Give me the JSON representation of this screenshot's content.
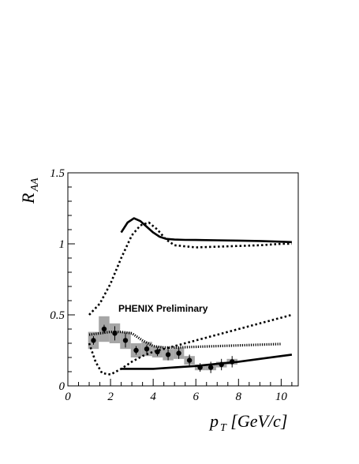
{
  "chart_data": {
    "type": "scatter",
    "title": "",
    "xlabel": "p_T [GeV/c]",
    "xlabel_main": "p",
    "xlabel_sub": "T",
    "xlabel_unit": " [GeV/c]",
    "ylabel": "R_AA",
    "ylabel_main": "R",
    "ylabel_sub": "AA",
    "xlim": [
      0,
      10.8
    ],
    "ylim": [
      0,
      1.5
    ],
    "x_ticks": [
      0,
      2,
      4,
      6,
      8,
      10
    ],
    "y_ticks": [
      0,
      0.5,
      1,
      1.5
    ],
    "x_tick_labels": [
      "0",
      "2",
      "4",
      "6",
      "8",
      "10"
    ],
    "y_tick_labels": [
      "0",
      "0.5",
      "1",
      "1.5"
    ],
    "annotation": "PHENIX Preliminary",
    "grid": false,
    "data_points": {
      "x": [
        1.2,
        1.7,
        2.2,
        2.7,
        3.2,
        3.7,
        4.2,
        4.7,
        5.2,
        5.7,
        6.2,
        6.7,
        7.2,
        7.7
      ],
      "y": [
        0.32,
        0.4,
        0.37,
        0.32,
        0.25,
        0.26,
        0.24,
        0.22,
        0.23,
        0.18,
        0.13,
        0.13,
        0.15,
        0.17
      ],
      "stat_err": [
        0.03,
        0.03,
        0.05,
        0.05,
        0.03,
        0.03,
        0.03,
        0.04,
        0.04,
        0.04,
        0.03,
        0.04,
        0.04,
        0.04
      ],
      "sys_err": [
        0.06,
        0.09,
        0.07,
        0.06,
        0.05,
        0.05,
        0.04,
        0.04,
        0.04,
        0.03,
        0.02,
        0.02,
        0.02,
        0.02
      ]
    },
    "curves": [
      {
        "style": "solid",
        "x": [
          2.5,
          2.8,
          3.1,
          3.4,
          3.7,
          4.0,
          4.3,
          4.6,
          5.0,
          5.5,
          6.0,
          7.0,
          8.0,
          9.0,
          10.0,
          10.5
        ],
        "y": [
          1.08,
          1.15,
          1.18,
          1.16,
          1.12,
          1.08,
          1.05,
          1.035,
          1.03,
          1.028,
          1.027,
          1.025,
          1.023,
          1.02,
          1.015,
          1.012
        ]
      },
      {
        "style": "dotted",
        "x": [
          1.0,
          1.5,
          2.0,
          2.5,
          3.0,
          3.4,
          3.8,
          4.2,
          4.6,
          5.0,
          6.0,
          7.0,
          8.0,
          9.0,
          10.0,
          10.5
        ],
        "y": [
          0.5,
          0.58,
          0.72,
          0.9,
          1.06,
          1.13,
          1.15,
          1.1,
          1.03,
          0.99,
          0.975,
          0.98,
          0.985,
          0.99,
          1.0,
          1.0
        ]
      },
      {
        "style": "dotted",
        "x": [
          1.0,
          1.3,
          1.6,
          2.0,
          2.5,
          3.0,
          3.5,
          4.0,
          5.0,
          6.0,
          7.0,
          8.0,
          9.0,
          10.0,
          10.5
        ],
        "y": [
          0.3,
          0.17,
          0.09,
          0.08,
          0.12,
          0.17,
          0.21,
          0.24,
          0.28,
          0.32,
          0.36,
          0.4,
          0.44,
          0.48,
          0.5
        ]
      },
      {
        "style": "densely-dotted",
        "x": [
          1.0,
          1.5,
          2.0,
          2.5,
          3.0,
          3.5,
          4.0,
          4.5,
          5.0,
          6.0,
          7.0,
          8.0,
          9.0,
          10.0
        ],
        "y": [
          0.36,
          0.37,
          0.38,
          0.38,
          0.37,
          0.32,
          0.28,
          0.27,
          0.27,
          0.275,
          0.28,
          0.285,
          0.29,
          0.295
        ]
      },
      {
        "style": "solid",
        "x": [
          2.5,
          3.0,
          4.0,
          5.0,
          6.0,
          7.0,
          8.0,
          9.0,
          10.0,
          10.5
        ],
        "y": [
          0.12,
          0.12,
          0.12,
          0.13,
          0.14,
          0.155,
          0.17,
          0.19,
          0.21,
          0.22
        ]
      }
    ]
  }
}
